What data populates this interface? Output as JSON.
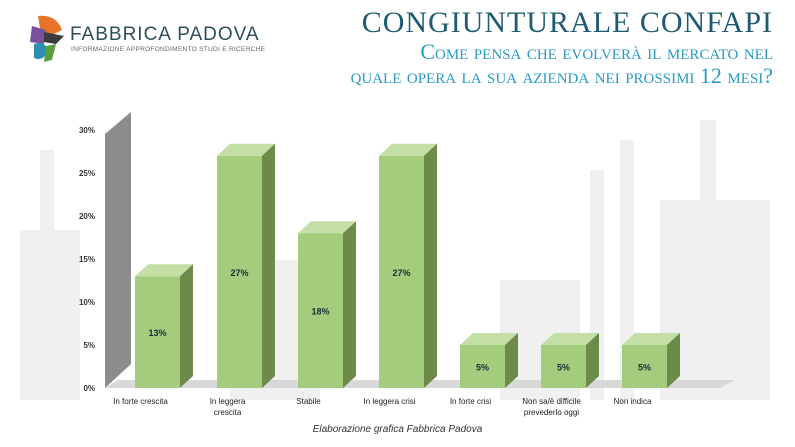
{
  "header": {
    "brand": "FABBRICA PADOVA",
    "brand_sub": "INFORMAZIONE APPROFONDIMENTO STUDI E RICERCHE",
    "title": "CONGIUNTURALE CONFAPI",
    "subtitle_line1": "Come pensa che evolverà il mercato nel",
    "subtitle_line2": "quale opera la sua azienda nei prossimi 12 mesi?"
  },
  "footer": {
    "source": "Elaborazione grafica Fabbrica Padova"
  },
  "colors": {
    "front": "#a3cd7c",
    "top": "#c4dfa6",
    "side": "#6c8a48",
    "wall": "#8c8c8c"
  },
  "chart_data": {
    "type": "bar",
    "title": "Come pensa che evolverà il mercato nel quale opera la sua azienda nei prossimi 12 mesi?",
    "categories": [
      [
        "In forte crescita"
      ],
      [
        "In leggera",
        "crescita"
      ],
      [
        "Stabile"
      ],
      [
        "In leggera crisi"
      ],
      [
        "In forte crisi"
      ],
      [
        "Non sa/è difficile",
        "prevederlo oggi"
      ],
      [
        "Non indica"
      ]
    ],
    "values": [
      13,
      27,
      18,
      27,
      5,
      5,
      5
    ],
    "labels": [
      "13%",
      "27%",
      "18%",
      "27%",
      "5%",
      "5%",
      "5%"
    ],
    "yticks": [
      "0%",
      "5%",
      "10%",
      "15%",
      "20%",
      "25%",
      "30%"
    ],
    "ylim": [
      0,
      30
    ]
  }
}
